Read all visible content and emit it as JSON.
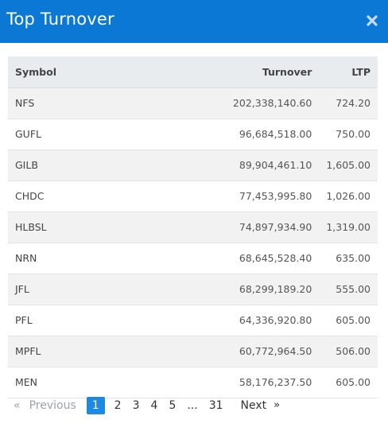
{
  "header": {
    "title": "Top Turnover",
    "close_icon": "close-x-icon"
  },
  "table": {
    "columns": [
      "Symbol",
      "Turnover",
      "LTP"
    ],
    "rows": [
      {
        "symbol": "NFS",
        "turnover": "202,338,140.60",
        "ltp": "724.20"
      },
      {
        "symbol": "GUFL",
        "turnover": "96,684,518.00",
        "ltp": "750.00"
      },
      {
        "symbol": "GILB",
        "turnover": "89,904,461.10",
        "ltp": "1,605.00"
      },
      {
        "symbol": "CHDC",
        "turnover": "77,453,995.80",
        "ltp": "1,026.00"
      },
      {
        "symbol": "HLBSL",
        "turnover": "74,897,934.90",
        "ltp": "1,319.00"
      },
      {
        "symbol": "NRN",
        "turnover": "68,645,528.40",
        "ltp": "635.00"
      },
      {
        "symbol": "JFL",
        "turnover": "68,299,189.20",
        "ltp": "555.00"
      },
      {
        "symbol": "PFL",
        "turnover": "64,336,920.80",
        "ltp": "605.00"
      },
      {
        "symbol": "MPFL",
        "turnover": "60,772,964.50",
        "ltp": "506.00"
      },
      {
        "symbol": "MEN",
        "turnover": "58,176,237.50",
        "ltp": "605.00"
      }
    ]
  },
  "pagination": {
    "first_arrow": "«",
    "previous_label": "Previous",
    "pages": [
      "1",
      "2",
      "3",
      "4",
      "5",
      "...",
      "31"
    ],
    "current_page": "1",
    "next_label": "Next",
    "last_arrow": "»"
  },
  "colors": {
    "header_bg": "#0b78d6",
    "active_page": "#1e88e5"
  }
}
